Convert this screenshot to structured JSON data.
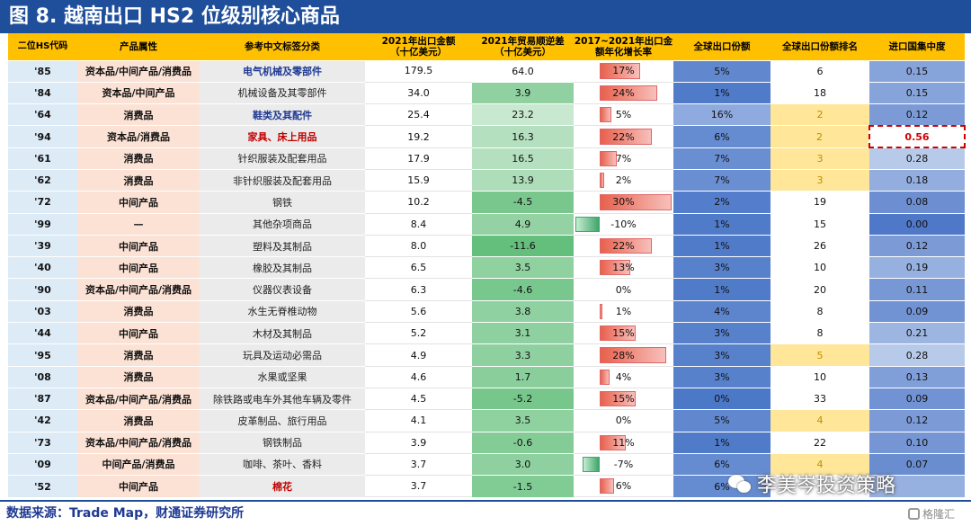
{
  "title": "图 8. 越南出口 HS2 位级别核心商品",
  "columns": [
    "二位HS代码",
    "产品属性",
    "参考中文标签分类",
    "2021年出口金额\n（十亿美元）",
    "2021年贸易顺逆差\n（十亿美元）",
    "2017~2021年出口金额年化增长率",
    "全球出口份额",
    "全球出口份额排名",
    "进口国集中度"
  ],
  "max_cagr": 30,
  "rows": [
    {
      "hs": "'85",
      "attr": "资本品/中间产品/消费品",
      "name": "电气机械及零部件",
      "name_style": "blue",
      "amount": "179.5",
      "balance": "64.0",
      "balance_val": 64.0,
      "cagr": "17%",
      "cagr_val": 17,
      "share": "5%",
      "share_val": 5,
      "rank": "6",
      "rank_hi": false,
      "conc": "0.15",
      "conc_val": 0.15
    },
    {
      "hs": "'84",
      "attr": "资本品/中间产品",
      "name": "机械设备及其零部件",
      "name_style": "",
      "amount": "34.0",
      "balance": "3.9",
      "balance_val": 3.9,
      "cagr": "24%",
      "cagr_val": 24,
      "share": "1%",
      "share_val": 1,
      "rank": "18",
      "rank_hi": false,
      "conc": "0.15",
      "conc_val": 0.15
    },
    {
      "hs": "'64",
      "attr": "消费品",
      "name": "鞋类及其配件",
      "name_style": "blue",
      "amount": "25.4",
      "balance": "23.2",
      "balance_val": 23.2,
      "cagr": "5%",
      "cagr_val": 5,
      "share": "16%",
      "share_val": 16,
      "rank": "2",
      "rank_hi": true,
      "conc": "0.12",
      "conc_val": 0.12
    },
    {
      "hs": "'94",
      "attr": "资本品/消费品",
      "name": "家具、床上用品",
      "name_style": "red",
      "amount": "19.2",
      "balance": "16.3",
      "balance_val": 16.3,
      "cagr": "22%",
      "cagr_val": 22,
      "share": "6%",
      "share_val": 6,
      "rank": "2",
      "rank_hi": true,
      "conc": "0.56",
      "conc_val": 0.56,
      "conc_hl": true
    },
    {
      "hs": "'61",
      "attr": "消费品",
      "name": "针织服装及配套用品",
      "name_style": "",
      "amount": "17.9",
      "balance": "16.5",
      "balance_val": 16.5,
      "cagr": "7%",
      "cagr_val": 7,
      "share": "7%",
      "share_val": 7,
      "rank": "3",
      "rank_hi": true,
      "conc": "0.28",
      "conc_val": 0.28
    },
    {
      "hs": "'62",
      "attr": "消费品",
      "name": "非针织服装及配套用品",
      "name_style": "",
      "amount": "15.9",
      "balance": "13.9",
      "balance_val": 13.9,
      "cagr": "2%",
      "cagr_val": 2,
      "share": "7%",
      "share_val": 7,
      "rank": "3",
      "rank_hi": true,
      "conc": "0.18",
      "conc_val": 0.18
    },
    {
      "hs": "'72",
      "attr": "中间产品",
      "name": "钢铁",
      "name_style": "",
      "amount": "10.2",
      "balance": "-4.5",
      "balance_val": -4.5,
      "cagr": "30%",
      "cagr_val": 30,
      "share": "2%",
      "share_val": 2,
      "rank": "19",
      "rank_hi": false,
      "conc": "0.08",
      "conc_val": 0.08
    },
    {
      "hs": "'99",
      "attr": "—",
      "name": "其他杂项商品",
      "name_style": "",
      "amount": "8.4",
      "balance": "4.9",
      "balance_val": 4.9,
      "cagr": "-10%",
      "cagr_val": -10,
      "share": "1%",
      "share_val": 1,
      "rank": "15",
      "rank_hi": false,
      "conc": "0.00",
      "conc_val": 0.0
    },
    {
      "hs": "'39",
      "attr": "中间产品",
      "name": "塑料及其制品",
      "name_style": "",
      "amount": "8.0",
      "balance": "-11.6",
      "balance_val": -11.6,
      "cagr": "22%",
      "cagr_val": 22,
      "share": "1%",
      "share_val": 1,
      "rank": "26",
      "rank_hi": false,
      "conc": "0.12",
      "conc_val": 0.12
    },
    {
      "hs": "'40",
      "attr": "中间产品",
      "name": "橡胶及其制品",
      "name_style": "",
      "amount": "6.5",
      "balance": "3.5",
      "balance_val": 3.5,
      "cagr": "13%",
      "cagr_val": 13,
      "share": "3%",
      "share_val": 3,
      "rank": "10",
      "rank_hi": false,
      "conc": "0.19",
      "conc_val": 0.19
    },
    {
      "hs": "'90",
      "attr": "资本品/中间产品/消费品",
      "name": "仪器仪表设备",
      "name_style": "",
      "amount": "6.3",
      "balance": "-4.6",
      "balance_val": -4.6,
      "cagr": "0%",
      "cagr_val": 0,
      "share": "1%",
      "share_val": 1,
      "rank": "20",
      "rank_hi": false,
      "conc": "0.11",
      "conc_val": 0.11
    },
    {
      "hs": "'03",
      "attr": "消费品",
      "name": "水生无脊椎动物",
      "name_style": "",
      "amount": "5.6",
      "balance": "3.8",
      "balance_val": 3.8,
      "cagr": "1%",
      "cagr_val": 1,
      "share": "4%",
      "share_val": 4,
      "rank": "8",
      "rank_hi": false,
      "conc": "0.09",
      "conc_val": 0.09
    },
    {
      "hs": "'44",
      "attr": "中间产品",
      "name": "木材及其制品",
      "name_style": "",
      "amount": "5.2",
      "balance": "3.1",
      "balance_val": 3.1,
      "cagr": "15%",
      "cagr_val": 15,
      "share": "3%",
      "share_val": 3,
      "rank": "8",
      "rank_hi": false,
      "conc": "0.21",
      "conc_val": 0.21
    },
    {
      "hs": "'95",
      "attr": "消费品",
      "name": "玩具及运动必需品",
      "name_style": "",
      "amount": "4.9",
      "balance": "3.3",
      "balance_val": 3.3,
      "cagr": "28%",
      "cagr_val": 28,
      "share": "3%",
      "share_val": 3,
      "rank": "5",
      "rank_hi": true,
      "conc": "0.28",
      "conc_val": 0.28
    },
    {
      "hs": "'08",
      "attr": "消费品",
      "name": "水果或坚果",
      "name_style": "",
      "amount": "4.6",
      "balance": "1.7",
      "balance_val": 1.7,
      "cagr": "4%",
      "cagr_val": 4,
      "share": "3%",
      "share_val": 3,
      "rank": "10",
      "rank_hi": false,
      "conc": "0.13",
      "conc_val": 0.13
    },
    {
      "hs": "'87",
      "attr": "资本品/中间产品/消费品",
      "name": "除铁路或电车外其他车辆及零件",
      "name_style": "",
      "amount": "4.5",
      "balance": "-5.2",
      "balance_val": -5.2,
      "cagr": "15%",
      "cagr_val": 15,
      "share": "0%",
      "share_val": 0,
      "rank": "33",
      "rank_hi": false,
      "conc": "0.09",
      "conc_val": 0.09
    },
    {
      "hs": "'42",
      "attr": "消费品",
      "name": "皮革制品、旅行用品",
      "name_style": "",
      "amount": "4.1",
      "balance": "3.5",
      "balance_val": 3.5,
      "cagr": "0%",
      "cagr_val": 0,
      "share": "5%",
      "share_val": 5,
      "rank": "4",
      "rank_hi": true,
      "conc": "0.12",
      "conc_val": 0.12
    },
    {
      "hs": "'73",
      "attr": "资本品/中间产品/消费品",
      "name": "钢铁制品",
      "name_style": "",
      "amount": "3.9",
      "balance": "-0.6",
      "balance_val": -0.6,
      "cagr": "11%",
      "cagr_val": 11,
      "share": "1%",
      "share_val": 1,
      "rank": "22",
      "rank_hi": false,
      "conc": "0.10",
      "conc_val": 0.1
    },
    {
      "hs": "'09",
      "attr": "中间产品/消费品",
      "name": "咖啡、茶叶、香料",
      "name_style": "",
      "amount": "3.7",
      "balance": "3.0",
      "balance_val": 3.0,
      "cagr": "-7%",
      "cagr_val": -7,
      "share": "6%",
      "share_val": 6,
      "rank": "4",
      "rank_hi": true,
      "conc": "0.07",
      "conc_val": 0.07
    },
    {
      "hs": "'52",
      "attr": "中间产品",
      "name": "棉花",
      "name_style": "red",
      "amount": "3.7",
      "balance": "-1.5",
      "balance_val": -1.5,
      "cagr": "6%",
      "cagr_val": 6,
      "share": "6%",
      "share_val": 6,
      "rank": "",
      "rank_hi": false,
      "conc": "",
      "conc_val": 0.19
    }
  ],
  "source": "数据来源：Trade Map，财通证券研究所",
  "watermark": "李美岑投资策略",
  "corner_logo": "格隆汇",
  "colors": {
    "header": "#ffc000",
    "title_bg": "#1f4e9a",
    "hs_bg": "#ddebf7",
    "attr_bg": "#fbe2d5",
    "name_bg": "#ebebeb",
    "rank_hi": "#ffe699"
  }
}
